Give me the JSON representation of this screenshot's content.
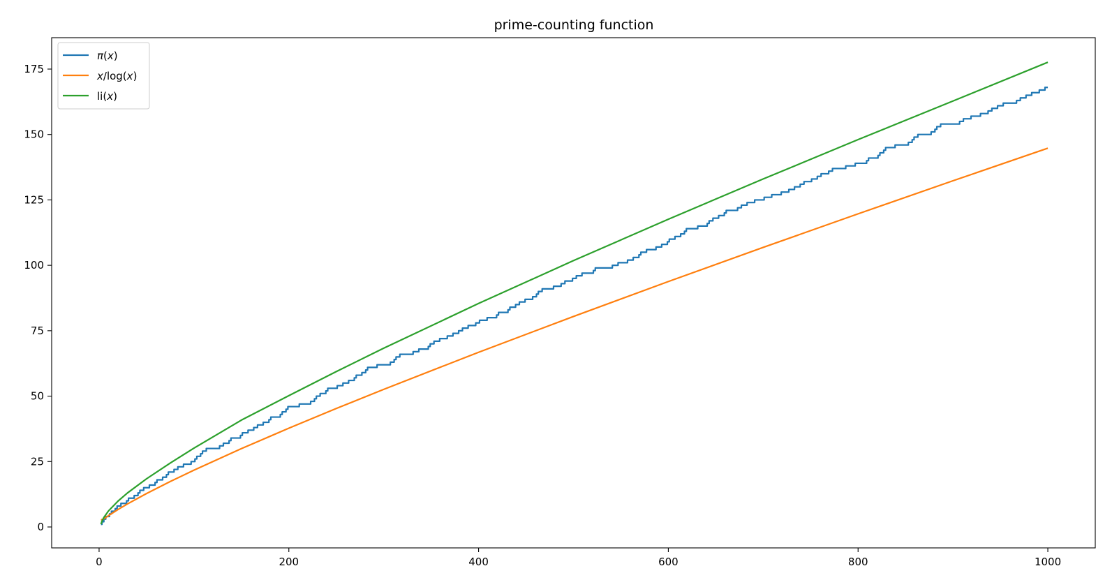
{
  "chart_data": {
    "type": "line",
    "title": "prime-counting function",
    "xlabel": "",
    "ylabel": "",
    "xlim": [
      -50,
      1050
    ],
    "ylim": [
      -8,
      187
    ],
    "x_ticks": [
      0,
      200,
      400,
      600,
      800,
      1000
    ],
    "y_ticks": [
      0,
      25,
      50,
      75,
      100,
      125,
      150,
      175
    ],
    "x_tick_labels": [
      "0",
      "200",
      "400",
      "600",
      "800",
      "1000"
    ],
    "y_tick_labels": [
      "0",
      "25",
      "50",
      "75",
      "100",
      "125",
      "150",
      "175"
    ],
    "x_range": [
      2,
      1000
    ],
    "grid": false,
    "legend_position": "top-left",
    "series": [
      {
        "name": "π(x)",
        "color": "#1f77b4",
        "style": "step",
        "x": [
          2,
          3,
          5,
          7,
          11,
          13,
          17,
          19,
          23,
          29,
          31,
          37,
          41,
          43,
          47,
          53,
          59,
          61,
          67,
          71,
          73,
          79,
          83,
          89,
          97,
          101,
          103,
          107,
          109,
          113,
          127,
          131,
          137,
          139,
          149,
          151,
          157,
          163,
          167,
          173,
          179,
          181,
          191,
          193,
          197,
          199,
          211,
          223,
          227,
          229,
          233,
          239,
          241,
          251,
          257,
          263,
          269,
          271,
          277,
          281,
          283,
          293,
          307,
          311,
          313,
          317,
          331,
          337,
          347,
          349,
          353,
          359,
          367,
          373,
          379,
          383,
          389,
          397,
          401,
          409,
          419,
          421,
          431,
          433,
          439,
          443,
          449,
          457,
          461,
          463,
          467,
          479,
          487,
          491,
          499,
          503,
          509,
          521,
          523,
          541,
          547,
          557,
          563,
          569,
          571,
          577,
          587,
          593,
          599,
          601,
          607,
          613,
          617,
          619,
          631,
          641,
          643,
          647,
          653,
          659,
          661,
          673,
          677,
          683,
          691,
          701,
          709,
          719,
          727,
          733,
          739,
          743,
          751,
          757,
          761,
          769,
          773,
          787,
          797,
          809,
          811,
          821,
          823,
          827,
          829,
          839,
          853,
          857,
          859,
          863,
          877,
          881,
          883,
          887,
          907,
          911,
          919,
          929,
          937,
          941,
          947,
          953,
          967,
          971,
          977,
          983,
          991,
          997,
          1000
        ],
        "values": [
          1,
          2,
          3,
          4,
          5,
          6,
          7,
          8,
          9,
          10,
          11,
          12,
          13,
          14,
          15,
          16,
          17,
          18,
          19,
          20,
          21,
          22,
          23,
          24,
          25,
          26,
          27,
          28,
          29,
          30,
          31,
          32,
          33,
          34,
          35,
          36,
          37,
          38,
          39,
          40,
          41,
          42,
          43,
          44,
          45,
          46,
          47,
          48,
          49,
          50,
          51,
          52,
          53,
          54,
          55,
          56,
          57,
          58,
          59,
          60,
          61,
          62,
          63,
          64,
          65,
          66,
          67,
          68,
          69,
          70,
          71,
          72,
          73,
          74,
          75,
          76,
          77,
          78,
          79,
          80,
          81,
          82,
          83,
          84,
          85,
          86,
          87,
          88,
          89,
          90,
          91,
          92,
          93,
          94,
          95,
          96,
          97,
          98,
          99,
          100,
          101,
          102,
          103,
          104,
          105,
          106,
          107,
          108,
          109,
          110,
          111,
          112,
          113,
          114,
          115,
          116,
          117,
          118,
          119,
          120,
          121,
          122,
          123,
          124,
          125,
          126,
          127,
          128,
          129,
          130,
          131,
          132,
          133,
          134,
          135,
          136,
          137,
          138,
          139,
          140,
          141,
          142,
          143,
          144,
          145,
          146,
          147,
          148,
          149,
          150,
          151,
          152,
          153,
          154,
          155,
          156,
          157,
          158,
          159,
          160,
          161,
          162,
          163,
          164,
          165,
          166,
          167,
          168,
          168
        ]
      },
      {
        "name": "x/log(x)",
        "color": "#ff7f0e",
        "x": [
          2,
          3,
          5,
          10,
          20,
          30,
          50,
          75,
          100,
          150,
          200,
          250,
          300,
          400,
          500,
          600,
          700,
          800,
          900,
          1000
        ],
        "values": [
          2.885,
          2.731,
          3.107,
          4.343,
          6.676,
          8.82,
          12.781,
          17.371,
          21.715,
          29.936,
          37.747,
          45.277,
          52.597,
          66.761,
          80.455,
          93.795,
          106.853,
          119.679,
          132.309,
          144.765
        ]
      },
      {
        "name": "li(x)",
        "color": "#2ca02c",
        "x": [
          2,
          3,
          5,
          10,
          20,
          30,
          50,
          75,
          100,
          150,
          200,
          250,
          300,
          400,
          500,
          600,
          700,
          800,
          900,
          1000
        ],
        "values": [
          1.045,
          2.164,
          3.635,
          6.166,
          9.905,
          13.023,
          18.408,
          24.421,
          30.126,
          40.84,
          50.192,
          59.386,
          68.332,
          85.42,
          101.794,
          117.616,
          133.008,
          148.045,
          162.788,
          177.61
        ]
      }
    ],
    "legend": {
      "pi_math": "π",
      "pi_rest": "(",
      "pi_var": "x",
      "pi_close": ")",
      "ratio_var1": "x",
      "ratio_mid": "/log(",
      "ratio_var2": "x",
      "ratio_close": ")",
      "li_pre": "li(",
      "li_var": "x",
      "li_close": ")"
    }
  }
}
